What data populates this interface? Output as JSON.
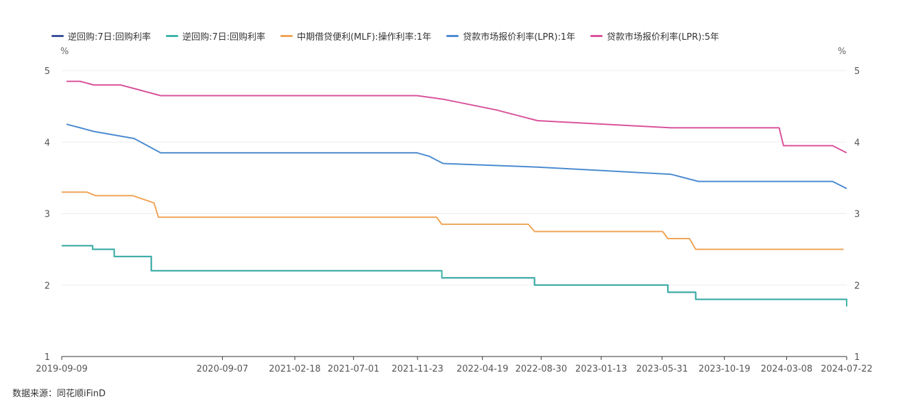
{
  "legend": [
    {
      "label": "逆回购:7日:回购利率",
      "color": "#3b4f9a"
    },
    {
      "label": "逆回购:7日:回购利率",
      "color": "#3cb4a6"
    },
    {
      "label": "中期借贷便利(MLF):操作利率:1年",
      "color": "#f0a456"
    },
    {
      "label": "贷款市场报价利率(LPR):1年",
      "color": "#4a8ad0"
    },
    {
      "label": "贷款市场报价利率(LPR):5年",
      "color": "#d9519a"
    }
  ],
  "axis": {
    "y_unit_left": "%",
    "y_unit_right": "%"
  },
  "source_text": "数据来源：同花顺iFinD",
  "chart_data": {
    "type": "line",
    "title": "",
    "xlabel": "",
    "ylabel": "%",
    "ylim": [
      1,
      5
    ],
    "yticks": [
      1,
      2,
      3,
      4,
      5
    ],
    "xlim": [
      "2019-09-09",
      "2024-07-22"
    ],
    "xticks": [
      "2019-09-09",
      "2020-09-07",
      "2021-02-18",
      "2021-07-01",
      "2021-11-23",
      "2022-04-19",
      "2022-08-30",
      "2023-01-13",
      "2023-05-31",
      "2023-10-19",
      "2024-03-08",
      "2024-07-22"
    ],
    "grid": true,
    "legend_position": "top-left",
    "series": [
      {
        "name": "逆回购:7日:回购利率",
        "color": "#3b4f9a",
        "step": true,
        "points": [
          [
            "2019-09-09",
            2.55
          ],
          [
            "2019-11-18",
            2.5
          ],
          [
            "2020-01-06",
            2.4
          ],
          [
            "2020-03-30",
            2.2
          ],
          [
            "2022-01-17",
            2.1
          ],
          [
            "2022-08-15",
            2.0
          ],
          [
            "2023-06-13",
            1.9
          ],
          [
            "2023-08-15",
            1.8
          ],
          [
            "2024-07-22",
            1.7
          ]
        ]
      },
      {
        "name": "逆回购:7日:回购利率",
        "color": "#3cb4a6",
        "step": true,
        "points": [
          [
            "2019-09-09",
            2.55
          ],
          [
            "2019-11-18",
            2.5
          ],
          [
            "2020-01-06",
            2.4
          ],
          [
            "2020-03-30",
            2.2
          ],
          [
            "2022-01-17",
            2.1
          ],
          [
            "2022-08-15",
            2.0
          ],
          [
            "2023-06-13",
            1.9
          ],
          [
            "2023-08-15",
            1.8
          ],
          [
            "2024-07-22",
            1.7
          ]
        ]
      },
      {
        "name": "中期借贷便利(MLF):操作利率:1年",
        "color": "#f0a456",
        "step": false,
        "points": [
          [
            "2019-09-09",
            3.3
          ],
          [
            "2019-11-05",
            3.3
          ],
          [
            "2019-11-25",
            3.25
          ],
          [
            "2020-02-17",
            3.25
          ],
          [
            "2020-04-05",
            3.15
          ],
          [
            "2020-04-15",
            2.95
          ],
          [
            "2022-01-05",
            2.95
          ],
          [
            "2022-01-17",
            2.85
          ],
          [
            "2022-08-01",
            2.85
          ],
          [
            "2022-08-15",
            2.75
          ],
          [
            "2023-06-01",
            2.75
          ],
          [
            "2023-06-13",
            2.65
          ],
          [
            "2023-08-01",
            2.65
          ],
          [
            "2023-08-15",
            2.5
          ],
          [
            "2024-07-15",
            2.5
          ]
        ]
      },
      {
        "name": "贷款市场报价利率(LPR):1年",
        "color": "#4a8ad0",
        "step": false,
        "points": [
          [
            "2019-09-20",
            4.25
          ],
          [
            "2019-10-21",
            4.2
          ],
          [
            "2019-11-20",
            4.15
          ],
          [
            "2020-02-20",
            4.05
          ],
          [
            "2020-04-20",
            3.85
          ],
          [
            "2021-11-22",
            3.85
          ],
          [
            "2021-12-20",
            3.8
          ],
          [
            "2022-01-20",
            3.7
          ],
          [
            "2022-08-22",
            3.65
          ],
          [
            "2023-06-20",
            3.55
          ],
          [
            "2023-08-21",
            3.45
          ],
          [
            "2024-06-20",
            3.45
          ],
          [
            "2024-07-22",
            3.35
          ]
        ]
      },
      {
        "name": "贷款市场报价利率(LPR):5年",
        "color": "#d9519a",
        "step": false,
        "points": [
          [
            "2019-09-20",
            4.85
          ],
          [
            "2019-10-21",
            4.85
          ],
          [
            "2019-11-20",
            4.8
          ],
          [
            "2020-01-20",
            4.8
          ],
          [
            "2020-02-20",
            4.75
          ],
          [
            "2020-04-20",
            4.65
          ],
          [
            "2021-11-22",
            4.65
          ],
          [
            "2022-01-20",
            4.6
          ],
          [
            "2022-05-20",
            4.45
          ],
          [
            "2022-08-22",
            4.3
          ],
          [
            "2023-06-20",
            4.2
          ],
          [
            "2024-02-20",
            4.2
          ],
          [
            "2024-03-01",
            3.95
          ],
          [
            "2024-06-20",
            3.95
          ],
          [
            "2024-07-22",
            3.85
          ]
        ]
      }
    ]
  }
}
